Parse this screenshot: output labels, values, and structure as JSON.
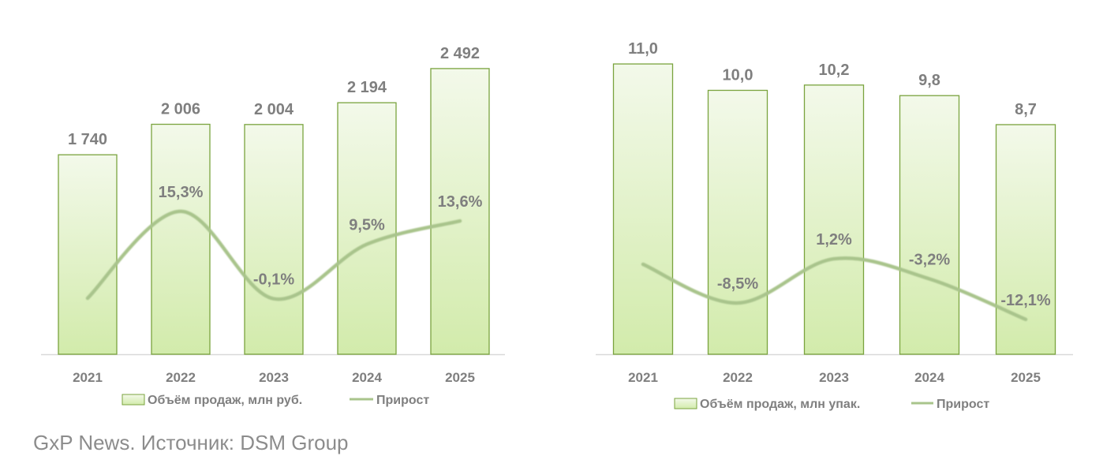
{
  "source": "GxP News. Источник: DSM Group",
  "colors": {
    "bar_fill_top": "#f3f9ea",
    "bar_fill_bottom": "#d2ebab",
    "bar_stroke": "#7aa33e",
    "line": "#a9c48c",
    "text": "#7f7f7f"
  },
  "chart_data": [
    {
      "type": "bar",
      "categories": [
        "2021",
        "2022",
        "2023",
        "2024",
        "2025"
      ],
      "series": [
        {
          "name": "Объём продаж, млн руб.",
          "type": "bar",
          "values": [
            1740,
            2006,
            2004,
            2194,
            2492
          ],
          "labels": [
            "1 740",
            "2 006",
            "2 004",
            "2 194",
            "2 492"
          ]
        },
        {
          "name": "Прирост",
          "type": "line",
          "values": [
            0,
            15.3,
            -0.1,
            9.5,
            13.6
          ],
          "labels": [
            "",
            "15,3%",
            "-0,1%",
            "9,5%",
            "13,6%"
          ]
        }
      ],
      "legend": [
        "Объём продаж, млн руб.",
        "Прирост"
      ],
      "legend_position": "bottom"
    },
    {
      "type": "bar",
      "categories": [
        "2021",
        "2022",
        "2023",
        "2024",
        "2025"
      ],
      "series": [
        {
          "name": "Объём продаж, млн упак.",
          "type": "bar",
          "values": [
            11.0,
            10.0,
            10.2,
            9.8,
            8.7
          ],
          "labels": [
            "11,0",
            "10,0",
            "10,2",
            "9,8",
            "8,7"
          ]
        },
        {
          "name": "Прирост",
          "type": "line",
          "values": [
            0,
            -8.5,
            1.2,
            -3.2,
            -12.1
          ],
          "labels": [
            "",
            "-8,5%",
            "1,2%",
            "-3,2%",
            "-12,1%"
          ]
        }
      ],
      "legend": [
        "Объём продаж, млн упак.",
        "Прирост"
      ],
      "legend_position": "bottom"
    }
  ]
}
